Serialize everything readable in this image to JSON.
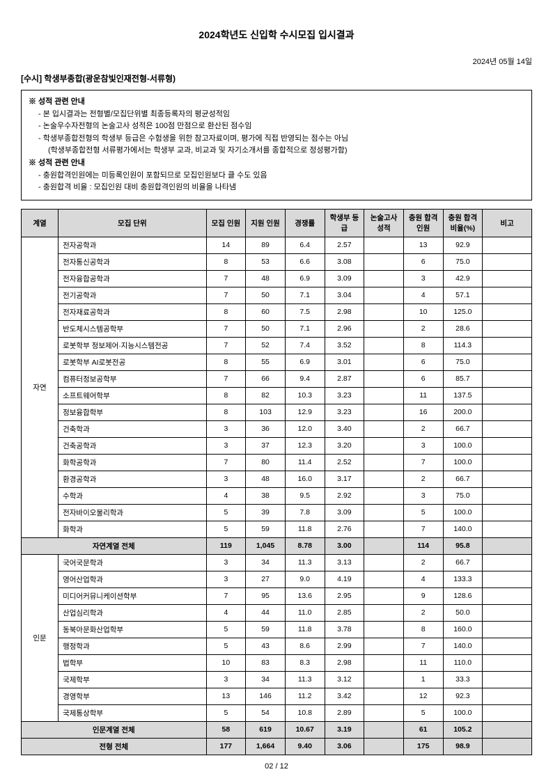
{
  "title": "2024학년도 신입학 수시모집 입시결과",
  "date": "2024년 05월 14일",
  "section_header": "[수시] 학생부종합(광운참빛인재전형-서류형)",
  "info_header1": "※ 성적 관련 안내",
  "info_line1": "- 본 입시결과는 전형별/모집단위별 최종등록자의 평균성적임",
  "info_line2": "- 논술우수자전형의 논술고사 성적은 100점 만점으로 환산된 점수임",
  "info_line3": "- 학생부종합전형의 학생부 등급은 수험생을 위한 참고자료이며, 평가에 직접 반영되는 점수는 아님",
  "info_line3b": "(학생부종합전형 서류평가에서는 학생부 교과, 비교과 및 자기소개서를 종합적으로 정성평가함)",
  "info_header2": "※ 성적 관련 안내",
  "info_line4": "- 충원합격인원에는 미등록인원이 포함되므로 모집인원보다 클 수도 있음",
  "info_line5": "- 충원합격 비율 : 모집인원 대비 충원합격인원의 비율을 나타냄",
  "columns": [
    "계열",
    "모집\n단위",
    "모집\n인원",
    "지원\n인원",
    "경쟁률",
    "학생부\n등급",
    "논술고사\n성적",
    "충원\n합격\n인원",
    "충원\n합격\n비율(%)",
    "비고"
  ],
  "cat1": "자연",
  "rows1": [
    [
      "전자공학과",
      "14",
      "89",
      "6.4",
      "2.57",
      "",
      "13",
      "92.9",
      ""
    ],
    [
      "전자통신공학과",
      "8",
      "53",
      "6.6",
      "3.08",
      "",
      "6",
      "75.0",
      ""
    ],
    [
      "전자융합공학과",
      "7",
      "48",
      "6.9",
      "3.09",
      "",
      "3",
      "42.9",
      ""
    ],
    [
      "전기공학과",
      "7",
      "50",
      "7.1",
      "3.04",
      "",
      "4",
      "57.1",
      ""
    ],
    [
      "전자재료공학과",
      "8",
      "60",
      "7.5",
      "2.98",
      "",
      "10",
      "125.0",
      ""
    ],
    [
      "반도체시스템공학부",
      "7",
      "50",
      "7.1",
      "2.96",
      "",
      "2",
      "28.6",
      ""
    ],
    [
      "로봇학부 정보제어·지능시스템전공",
      "7",
      "52",
      "7.4",
      "3.52",
      "",
      "8",
      "114.3",
      ""
    ],
    [
      "로봇학부 AI로봇전공",
      "8",
      "55",
      "6.9",
      "3.01",
      "",
      "6",
      "75.0",
      ""
    ],
    [
      "컴퓨터정보공학부",
      "7",
      "66",
      "9.4",
      "2.87",
      "",
      "6",
      "85.7",
      ""
    ],
    [
      "소프트웨어학부",
      "8",
      "82",
      "10.3",
      "3.23",
      "",
      "11",
      "137.5",
      ""
    ],
    [
      "정보융합학부",
      "8",
      "103",
      "12.9",
      "3.23",
      "",
      "16",
      "200.0",
      ""
    ],
    [
      "건축학과",
      "3",
      "36",
      "12.0",
      "3.40",
      "",
      "2",
      "66.7",
      ""
    ],
    [
      "건축공학과",
      "3",
      "37",
      "12.3",
      "3.20",
      "",
      "3",
      "100.0",
      ""
    ],
    [
      "화학공학과",
      "7",
      "80",
      "11.4",
      "2.52",
      "",
      "7",
      "100.0",
      ""
    ],
    [
      "환경공학과",
      "3",
      "48",
      "16.0",
      "3.17",
      "",
      "2",
      "66.7",
      ""
    ],
    [
      "수학과",
      "4",
      "38",
      "9.5",
      "2.92",
      "",
      "3",
      "75.0",
      ""
    ],
    [
      "전자바이오물리학과",
      "5",
      "39",
      "7.8",
      "3.09",
      "",
      "5",
      "100.0",
      ""
    ],
    [
      "화학과",
      "5",
      "59",
      "11.8",
      "2.76",
      "",
      "7",
      "140.0",
      ""
    ]
  ],
  "subtotal1": [
    "자연계열 전체",
    "119",
    "1,045",
    "8.78",
    "3.00",
    "",
    "114",
    "95.8",
    ""
  ],
  "cat2": "인문",
  "rows2": [
    [
      "국어국문학과",
      "3",
      "34",
      "11.3",
      "3.13",
      "",
      "2",
      "66.7",
      ""
    ],
    [
      "영어산업학과",
      "3",
      "27",
      "9.0",
      "4.19",
      "",
      "4",
      "133.3",
      ""
    ],
    [
      "미디어커뮤니케이션학부",
      "7",
      "95",
      "13.6",
      "2.95",
      "",
      "9",
      "128.6",
      ""
    ],
    [
      "산업심리학과",
      "4",
      "44",
      "11.0",
      "2.85",
      "",
      "2",
      "50.0",
      ""
    ],
    [
      "동북아문화산업학부",
      "5",
      "59",
      "11.8",
      "3.78",
      "",
      "8",
      "160.0",
      ""
    ],
    [
      "행정학과",
      "5",
      "43",
      "8.6",
      "2.99",
      "",
      "7",
      "140.0",
      ""
    ],
    [
      "법학부",
      "10",
      "83",
      "8.3",
      "2.98",
      "",
      "11",
      "110.0",
      ""
    ],
    [
      "국제학부",
      "3",
      "34",
      "11.3",
      "3.12",
      "",
      "1",
      "33.3",
      ""
    ],
    [
      "경영학부",
      "13",
      "146",
      "11.2",
      "3.42",
      "",
      "12",
      "92.3",
      ""
    ],
    [
      "국제통상학부",
      "5",
      "54",
      "10.8",
      "2.89",
      "",
      "5",
      "100.0",
      ""
    ]
  ],
  "subtotal2": [
    "인문계열 전체",
    "58",
    "619",
    "10.67",
    "3.19",
    "",
    "61",
    "105.2",
    ""
  ],
  "grand_total": [
    "전형 전체",
    "177",
    "1,664",
    "9.40",
    "3.06",
    "",
    "175",
    "98.9",
    ""
  ],
  "footer": "02 / 12"
}
